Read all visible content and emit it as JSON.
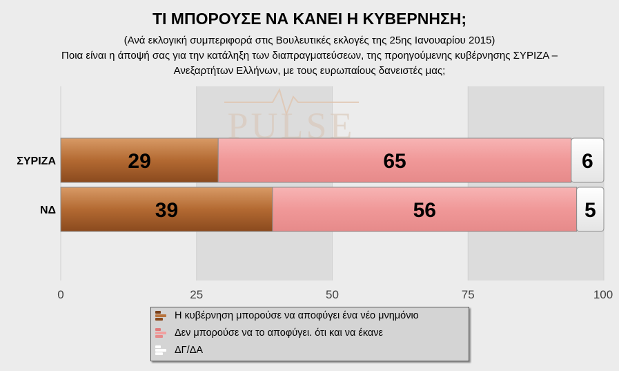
{
  "title": "ΤΙ ΜΠΟΡΟΥΣΕ ΝΑ ΚΑΝΕΙ Η ΚΥΒΕΡΝΗΣΗ;",
  "subtitle_line1": "(Ανά εκλογική συμπεριφορά στις Βουλευτικές εκλογές της 25ης Ιανουαρίου 2015)",
  "subtitle_line2": "Ποια είναι η άποψή σας για την κατάληξη των διαπραγματεύσεων, της προηγούμενης κυβέρνησης ΣΥΡΙΖΑ –",
  "subtitle_line3": "Ανεξαρτήτων Ελλήνων, με τους ευρωπαίους δανειστές μας;",
  "watermark": "PULSE",
  "colors": {
    "series1": "#b8743e",
    "series2": "#f0a0a0",
    "series3": "#ffffff"
  },
  "chart_data": {
    "type": "bar",
    "orientation": "horizontal",
    "stacked": true,
    "categories": [
      "ΣΥΡΙΖΑ",
      "ΝΔ"
    ],
    "series": [
      {
        "name": "Η κυβέρνηση μπορούσε να αποφύγει ένα νέο μνημόνιο",
        "values": [
          29,
          39
        ]
      },
      {
        "name": "Δεν μπορούσε να το αποφύγει. ότι και να έκανε",
        "values": [
          65,
          56
        ]
      },
      {
        "name": "ΔΓ/ΔΑ",
        "values": [
          6,
          5
        ]
      }
    ],
    "xticks": [
      0,
      25,
      50,
      75,
      100
    ],
    "xlim": [
      0,
      100
    ],
    "legend_position": "bottom"
  }
}
